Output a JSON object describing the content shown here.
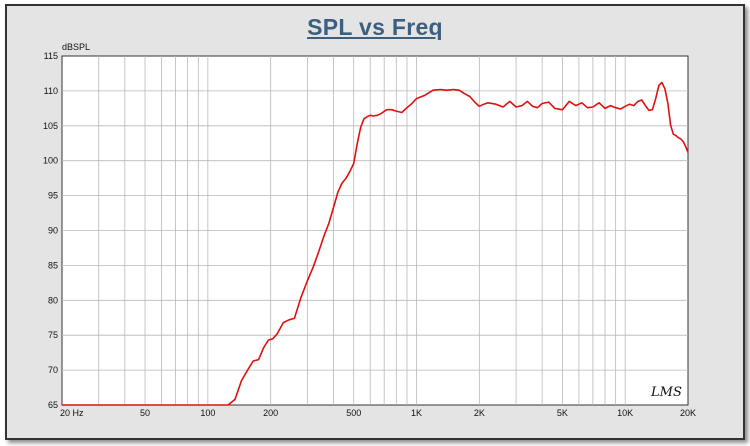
{
  "chart_data": {
    "type": "line",
    "title": "SPL vs Freq",
    "ylabel": "dBSPL",
    "xlabel": "",
    "x_scale": "log",
    "xlim": [
      20,
      20000
    ],
    "ylim": [
      65,
      115
    ],
    "grid": true,
    "y_ticks": [
      65,
      70,
      75,
      80,
      85,
      90,
      95,
      100,
      105,
      110,
      115
    ],
    "x_ticks": [
      {
        "value": 20,
        "label": "20  Hz"
      },
      {
        "value": 50,
        "label": "50"
      },
      {
        "value": 100,
        "label": "100"
      },
      {
        "value": 200,
        "label": "200"
      },
      {
        "value": 500,
        "label": "500"
      },
      {
        "value": 1000,
        "label": "1K"
      },
      {
        "value": 2000,
        "label": "2K"
      },
      {
        "value": 5000,
        "label": "5K"
      },
      {
        "value": 10000,
        "label": "10K"
      },
      {
        "value": 20000,
        "label": "20K"
      }
    ],
    "series": [
      {
        "color": "#e01010",
        "x": [
          20,
          125,
          135,
          145,
          155,
          165,
          175,
          185,
          195,
          205,
          215,
          230,
          245,
          260,
          280,
          300,
          320,
          340,
          360,
          380,
          400,
          420,
          440,
          460,
          480,
          500,
          520,
          540,
          560,
          580,
          600,
          620,
          650,
          680,
          720,
          760,
          800,
          850,
          900,
          950,
          1000,
          1100,
          1200,
          1300,
          1400,
          1500,
          1600,
          1700,
          1800,
          1900,
          2000,
          2100,
          2200,
          2400,
          2600,
          2800,
          3000,
          3200,
          3400,
          3600,
          3800,
          4000,
          4300,
          4600,
          5000,
          5400,
          5800,
          6200,
          6600,
          7000,
          7500,
          8000,
          8500,
          9000,
          9500,
          10000,
          10500,
          11000,
          11500,
          12000,
          12500,
          13000,
          13500,
          14000,
          14500,
          15000,
          15500,
          16000,
          16500,
          17000,
          17500,
          18000,
          18500,
          19000,
          19500,
          20000
        ],
        "y": [
          65,
          65,
          65.8,
          68.5,
          70,
          71.3,
          71.5,
          73.2,
          74.3,
          74.5,
          75.2,
          76.8,
          77.2,
          77.4,
          80.5,
          82.8,
          84.8,
          87,
          89.2,
          91,
          93.3,
          95.5,
          96.8,
          97.5,
          98.5,
          99.6,
          102.5,
          104.8,
          106,
          106.3,
          106.5,
          106.4,
          106.5,
          106.8,
          107.3,
          107.3,
          107.1,
          106.9,
          107.6,
          108.2,
          108.9,
          109.4,
          110.1,
          110.2,
          110.1,
          110.2,
          110.1,
          109.6,
          109.2,
          108.4,
          107.8,
          108.1,
          108.3,
          108.1,
          107.7,
          108.5,
          107.7,
          107.9,
          108.5,
          107.8,
          107.6,
          108.2,
          108.4,
          107.5,
          107.3,
          108.5,
          107.9,
          108.3,
          107.6,
          107.7,
          108.3,
          107.5,
          107.9,
          107.6,
          107.4,
          107.8,
          108.1,
          107.9,
          108.5,
          108.7,
          107.9,
          107.2,
          107.3,
          108.9,
          110.8,
          111.2,
          110.3,
          108.3,
          105.1,
          103.8,
          103.6,
          103.3,
          103.1,
          102.7,
          102,
          101.2
        ]
      }
    ],
    "watermark": "LMS"
  }
}
